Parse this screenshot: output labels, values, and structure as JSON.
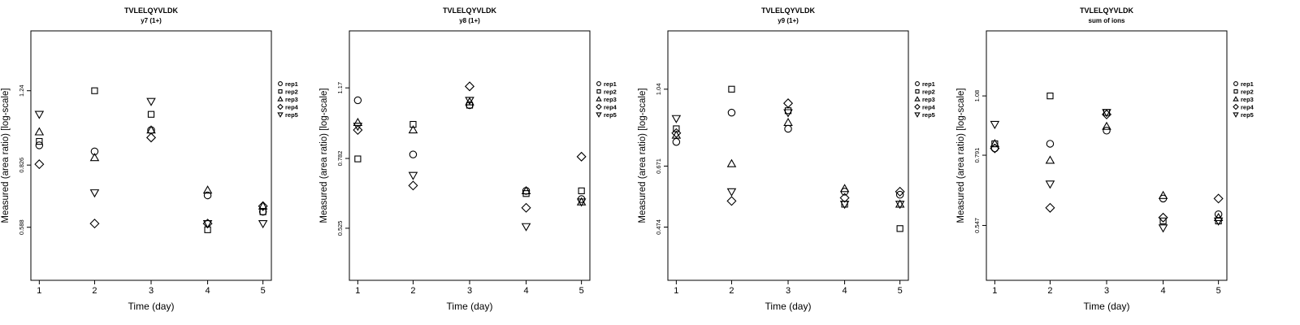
{
  "chart_data": [
    {
      "type": "scatter",
      "title": "TVLELQYVLDK",
      "subtitle": "y7 (1+)",
      "xlabel": "Time (day)",
      "ylabel": "Measured (area ratio) [log-scale]",
      "x_ticks": [
        "1",
        "2",
        "3",
        "4",
        "5"
      ],
      "y_ticks": [
        {
          "label": "0.588",
          "value": 0.588
        },
        {
          "label": "0.826",
          "value": 0.826
        },
        {
          "label": "1.24",
          "value": 1.24
        }
      ],
      "ylim": [
        0.44,
        1.72
      ],
      "log_scale": true,
      "legend_position": "right",
      "series": [
        {
          "name": "rep1",
          "marker": "circle",
          "values": [
            0.92,
            0.89,
            1.0,
            0.7,
            0.64
          ]
        },
        {
          "name": "rep2",
          "marker": "square",
          "values": [
            0.94,
            1.24,
            1.09,
            0.58,
            0.64
          ]
        },
        {
          "name": "rep3",
          "marker": "triangle-up",
          "values": [
            0.99,
            0.86,
            1.0,
            0.72,
            0.66
          ]
        },
        {
          "name": "rep4",
          "marker": "diamond",
          "values": [
            0.83,
            0.6,
            0.96,
            0.6,
            0.66
          ]
        },
        {
          "name": "rep5",
          "marker": "triangle-down",
          "values": [
            1.09,
            0.71,
            1.17,
            0.6,
            0.6
          ]
        }
      ]
    },
    {
      "type": "scatter",
      "title": "TVLELQYVLDK",
      "subtitle": "y8 (1+)",
      "xlabel": "Time (day)",
      "ylabel": "Measured (area ratio) [log-scale]",
      "x_ticks": [
        "1",
        "2",
        "3",
        "4",
        "5"
      ],
      "y_ticks": [
        {
          "label": "0.525",
          "value": 0.525
        },
        {
          "label": "0.782",
          "value": 0.782
        },
        {
          "label": "1.17",
          "value": 1.17
        }
      ],
      "ylim": [
        0.39,
        1.62
      ],
      "log_scale": true,
      "legend_position": "right",
      "series": [
        {
          "name": "rep1",
          "marker": "circle",
          "values": [
            1.09,
            0.8,
            1.06,
            0.65,
            0.62
          ]
        },
        {
          "name": "rep2",
          "marker": "square",
          "values": [
            0.78,
            0.95,
            1.06,
            0.64,
            0.65
          ]
        },
        {
          "name": "rep3",
          "marker": "triangle-up",
          "values": [
            0.96,
            0.92,
            1.08,
            0.65,
            0.61
          ]
        },
        {
          "name": "rep4",
          "marker": "diamond",
          "values": [
            0.92,
            0.67,
            1.18,
            0.59,
            0.79
          ]
        },
        {
          "name": "rep5",
          "marker": "triangle-down",
          "values": [
            0.94,
            0.71,
            1.09,
            0.53,
            0.61
          ]
        }
      ]
    },
    {
      "type": "scatter",
      "title": "TVLELQYVLDK",
      "subtitle": "y9 (1+)",
      "xlabel": "Time (day)",
      "ylabel": "Measured (area ratio) [log-scale]",
      "x_ticks": [
        "1",
        "2",
        "3",
        "4",
        "5"
      ],
      "y_ticks": [
        {
          "label": "0.474",
          "value": 0.474
        },
        {
          "label": "0.671",
          "value": 0.671
        },
        {
          "label": "1.04",
          "value": 1.04
        }
      ],
      "ylim": [
        0.35,
        1.45
      ],
      "log_scale": true,
      "legend_position": "right",
      "series": [
        {
          "name": "rep1",
          "marker": "circle",
          "values": [
            0.77,
            0.91,
            0.83,
            0.58,
            0.57
          ]
        },
        {
          "name": "rep2",
          "marker": "square",
          "values": [
            0.83,
            1.04,
            0.92,
            0.54,
            0.47
          ]
        },
        {
          "name": "rep3",
          "marker": "triangle-up",
          "values": [
            0.8,
            0.68,
            0.86,
            0.59,
            0.54
          ]
        },
        {
          "name": "rep4",
          "marker": "diamond",
          "values": [
            0.81,
            0.55,
            0.96,
            0.56,
            0.58
          ]
        },
        {
          "name": "rep5",
          "marker": "triangle-down",
          "values": [
            0.88,
            0.58,
            0.91,
            0.54,
            0.54
          ]
        }
      ]
    },
    {
      "type": "scatter",
      "title": "TVLELQYVLDK",
      "subtitle": "sum of ions",
      "xlabel": "Time (day)",
      "ylabel": "Measured (area ratio) [log-scale]",
      "x_ticks": [
        "1",
        "2",
        "3",
        "4",
        "5"
      ],
      "y_ticks": [
        {
          "label": "0.547",
          "value": 0.547
        },
        {
          "label": "0.791",
          "value": 0.791
        },
        {
          "label": "1.08",
          "value": 1.08
        }
      ],
      "ylim": [
        0.41,
        1.52
      ],
      "log_scale": true,
      "legend_position": "right",
      "series": [
        {
          "name": "rep1",
          "marker": "circle",
          "values": [
            0.82,
            0.84,
            0.9,
            0.63,
            0.58
          ]
        },
        {
          "name": "rep2",
          "marker": "square",
          "values": [
            0.84,
            1.08,
            0.99,
            0.56,
            0.56
          ]
        },
        {
          "name": "rep3",
          "marker": "triangle-up",
          "values": [
            0.84,
            0.77,
            0.92,
            0.64,
            0.57
          ]
        },
        {
          "name": "rep4",
          "marker": "diamond",
          "values": [
            0.82,
            0.6,
            0.98,
            0.57,
            0.63
          ]
        },
        {
          "name": "rep5",
          "marker": "triangle-down",
          "values": [
            0.93,
            0.68,
            0.99,
            0.54,
            0.56
          ]
        }
      ]
    }
  ]
}
